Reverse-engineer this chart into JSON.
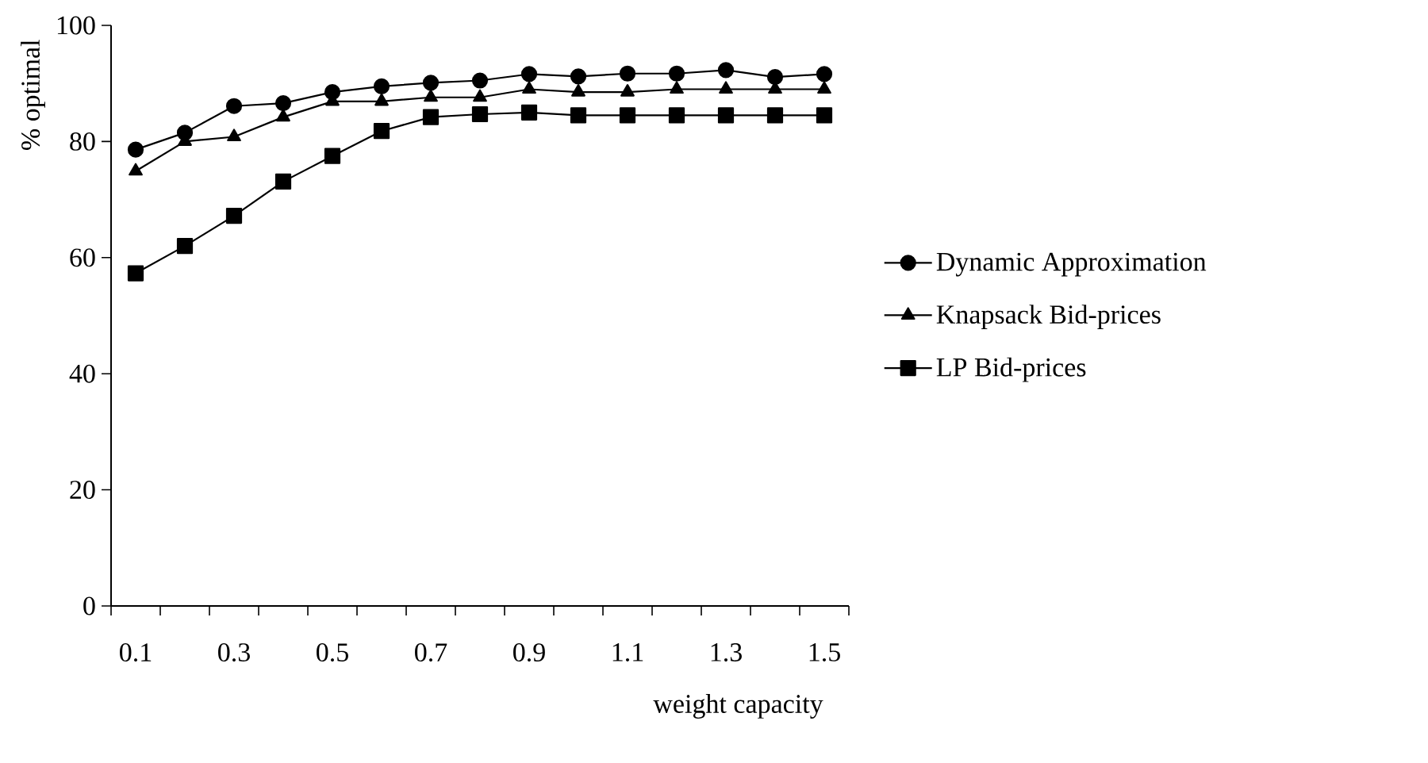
{
  "chart_data": {
    "type": "line",
    "xlabel": "weight capacity",
    "ylabel": "% optimal",
    "categories": [
      "0.1",
      null,
      "0.3",
      null,
      "0.5",
      null,
      "0.7",
      null,
      "0.9",
      null,
      "1.1",
      null,
      "1.3",
      null,
      "1.5"
    ],
    "ylim": [
      0,
      100
    ],
    "yticks": [
      0,
      20,
      40,
      60,
      80,
      100
    ],
    "grid": false,
    "legend": "right",
    "line_style": "solid",
    "series": [
      {
        "name": "Dynamic Approximation",
        "color": "#000000",
        "marker": "circle",
        "values": [
          78.6,
          81.5,
          86.1,
          86.6,
          88.5,
          89.5,
          90.1,
          90.5,
          91.6,
          91.2,
          91.7,
          91.7,
          92.3,
          91.1,
          91.6
        ]
      },
      {
        "name": "Knapsack Bid-prices",
        "color": "#000000",
        "marker": "triangle",
        "values": [
          74.9,
          80,
          80.8,
          84.2,
          86.9,
          86.9,
          87.6,
          87.6,
          89,
          88.5,
          88.5,
          89,
          89,
          89,
          89
        ]
      },
      {
        "name": "LP Bid-prices",
        "color": "#000000",
        "marker": "square",
        "values": [
          57.3,
          62,
          67.2,
          73.1,
          77.5,
          81.8,
          84.2,
          84.7,
          85,
          84.5,
          84.5,
          84.5,
          84.5,
          84.5,
          84.5
        ]
      }
    ]
  }
}
